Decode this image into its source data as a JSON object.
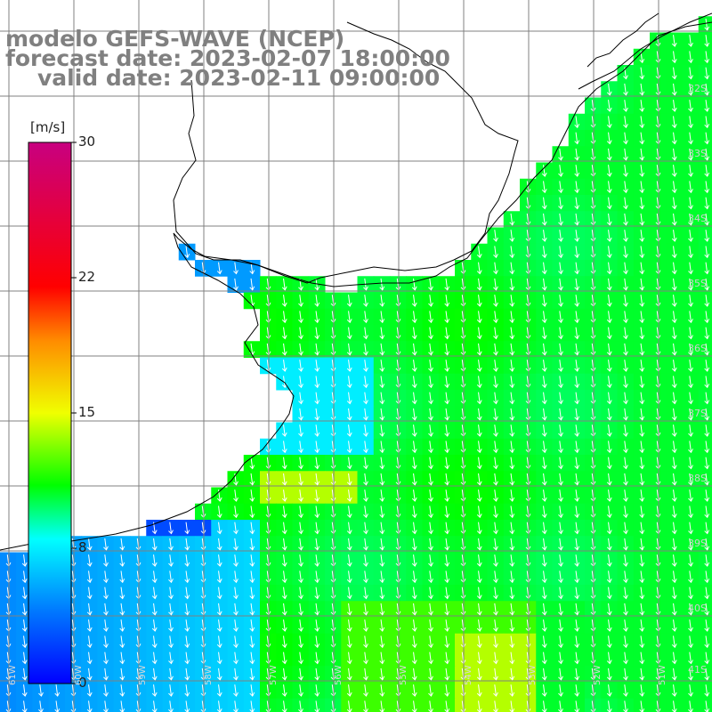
{
  "title": {
    "line1": "modelo GEFS-WAVE (NCEP)",
    "line2": "forecast date: 2023-02-07 18:00:00",
    "line3": "valid date: 2023-02-11 09:00:00"
  },
  "colorbar": {
    "unit": "[m/s]",
    "ticks": [
      "30",
      "22",
      "15",
      "8",
      "0"
    ],
    "tick_values": [
      30,
      22,
      15,
      8,
      0
    ],
    "min": 0,
    "max": 30,
    "colors": [
      "#0000ff",
      "#00a0ff",
      "#00ffff",
      "#00ff00",
      "#ffff00",
      "#ff8000",
      "#ff0000",
      "#c00080"
    ]
  },
  "lat_labels": [
    "32S",
    "33S",
    "34S",
    "35S",
    "36S",
    "37S",
    "38S",
    "39S",
    "40S",
    "41S"
  ],
  "lon_labels": [
    "61W",
    "60W",
    "59W",
    "58W",
    "57W",
    "56W",
    "55W",
    "54W",
    "53W",
    "52W",
    "51W"
  ],
  "wind_direction": "arrows pointing toward the south-southwest",
  "land_color": "#ffffff",
  "grid_color": "#808080",
  "coastline_color": "#000000"
}
